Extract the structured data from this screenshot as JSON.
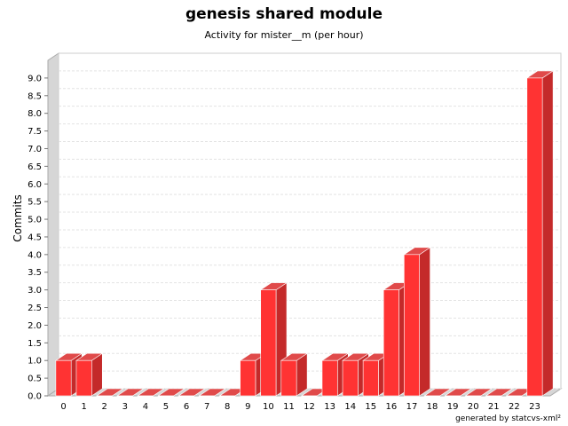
{
  "chart_data": {
    "type": "bar",
    "title": "genesis shared module",
    "subtitle": "Activity for mister__m (per hour)",
    "xlabel": "",
    "ylabel": "Commits",
    "categories": [
      "0",
      "1",
      "2",
      "3",
      "4",
      "5",
      "6",
      "7",
      "8",
      "9",
      "10",
      "11",
      "12",
      "13",
      "14",
      "15",
      "16",
      "17",
      "18",
      "19",
      "20",
      "21",
      "22",
      "23"
    ],
    "values": [
      1,
      1,
      0,
      0,
      0,
      0,
      0,
      0,
      0,
      1,
      3,
      1,
      0,
      1,
      1,
      1,
      3,
      4,
      0,
      0,
      0,
      0,
      0,
      9
    ],
    "ylim": [
      0,
      9.5
    ],
    "yticks": [
      "0.0",
      "0.5",
      "1.0",
      "1.5",
      "2.0",
      "2.5",
      "3.0",
      "3.5",
      "4.0",
      "4.5",
      "5.0",
      "5.5",
      "6.0",
      "6.5",
      "7.0",
      "7.5",
      "8.0",
      "8.5",
      "9.0"
    ],
    "grid": true,
    "bar_color": "#ff3333",
    "bar_side_color": "#c42a2a",
    "bar_top_color": "#e04a4a"
  },
  "footer": "generated by statcvs-xml²"
}
